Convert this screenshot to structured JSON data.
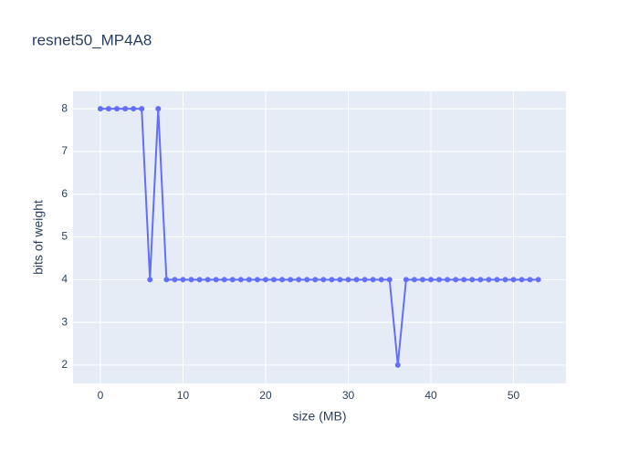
{
  "chart_data": {
    "type": "line",
    "title": "resnet50_MP4A8",
    "xlabel": "size (MB)",
    "ylabel": "bits of weight",
    "x": [
      0,
      1,
      2,
      3,
      4,
      5,
      6,
      7,
      8,
      9,
      10,
      11,
      12,
      13,
      14,
      15,
      16,
      17,
      18,
      19,
      20,
      21,
      22,
      23,
      24,
      25,
      26,
      27,
      28,
      29,
      30,
      31,
      32,
      33,
      34,
      35,
      36,
      37,
      38,
      39,
      40,
      41,
      42,
      43,
      44,
      45,
      46,
      47,
      48,
      49,
      50,
      51,
      52,
      53
    ],
    "series": [
      {
        "color": "#636efa",
        "values": [
          8,
          8,
          8,
          8,
          8,
          8,
          4,
          8,
          4,
          4,
          4,
          4,
          4,
          4,
          4,
          4,
          4,
          4,
          4,
          4,
          4,
          4,
          4,
          4,
          4,
          4,
          4,
          4,
          4,
          4,
          4,
          4,
          4,
          4,
          4,
          4,
          2,
          4,
          4,
          4,
          4,
          4,
          4,
          4,
          4,
          4,
          4,
          4,
          4,
          4,
          4,
          4,
          4,
          4
        ]
      }
    ],
    "xlim": [
      -3.31,
      56.35
    ],
    "ylim": [
      1.57,
      8.41
    ],
    "xticks": [
      0,
      10,
      20,
      30,
      40,
      50
    ],
    "yticks": [
      2,
      3,
      4,
      5,
      6,
      7,
      8
    ],
    "grid": true
  }
}
